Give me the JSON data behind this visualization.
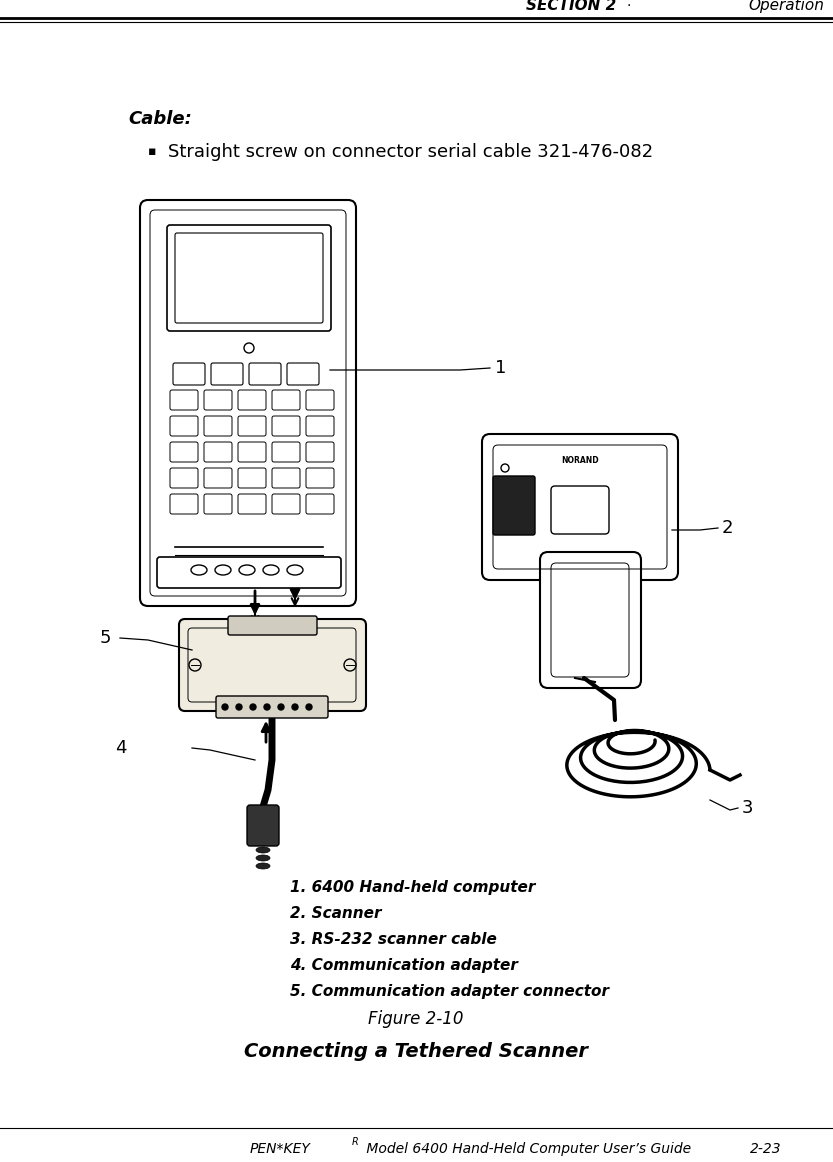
{
  "background_color": "#ffffff",
  "header_section": "SECTION 2",
  "header_dot": "·",
  "header_operation": "Operation",
  "cable_label": "Cable:",
  "cable_item": "Straight screw on connector serial cable 321-476-082",
  "list_items": [
    "1. 6400 Hand-held computer",
    "2. Scanner",
    "3. RS-232 scanner cable",
    "4. Communication adapter",
    "5. Communication adapter connector"
  ],
  "figure_label": "Figure 2-10",
  "figure_caption": "Connecting a Tethered Scanner",
  "footer_pen": "PEN*KEY",
  "footer_sup": "R",
  "footer_rest": " Model 6400 Hand-Held Computer User’s Guide",
  "footer_page": "2-23",
  "line_color": "#000000",
  "text_color": "#000000"
}
